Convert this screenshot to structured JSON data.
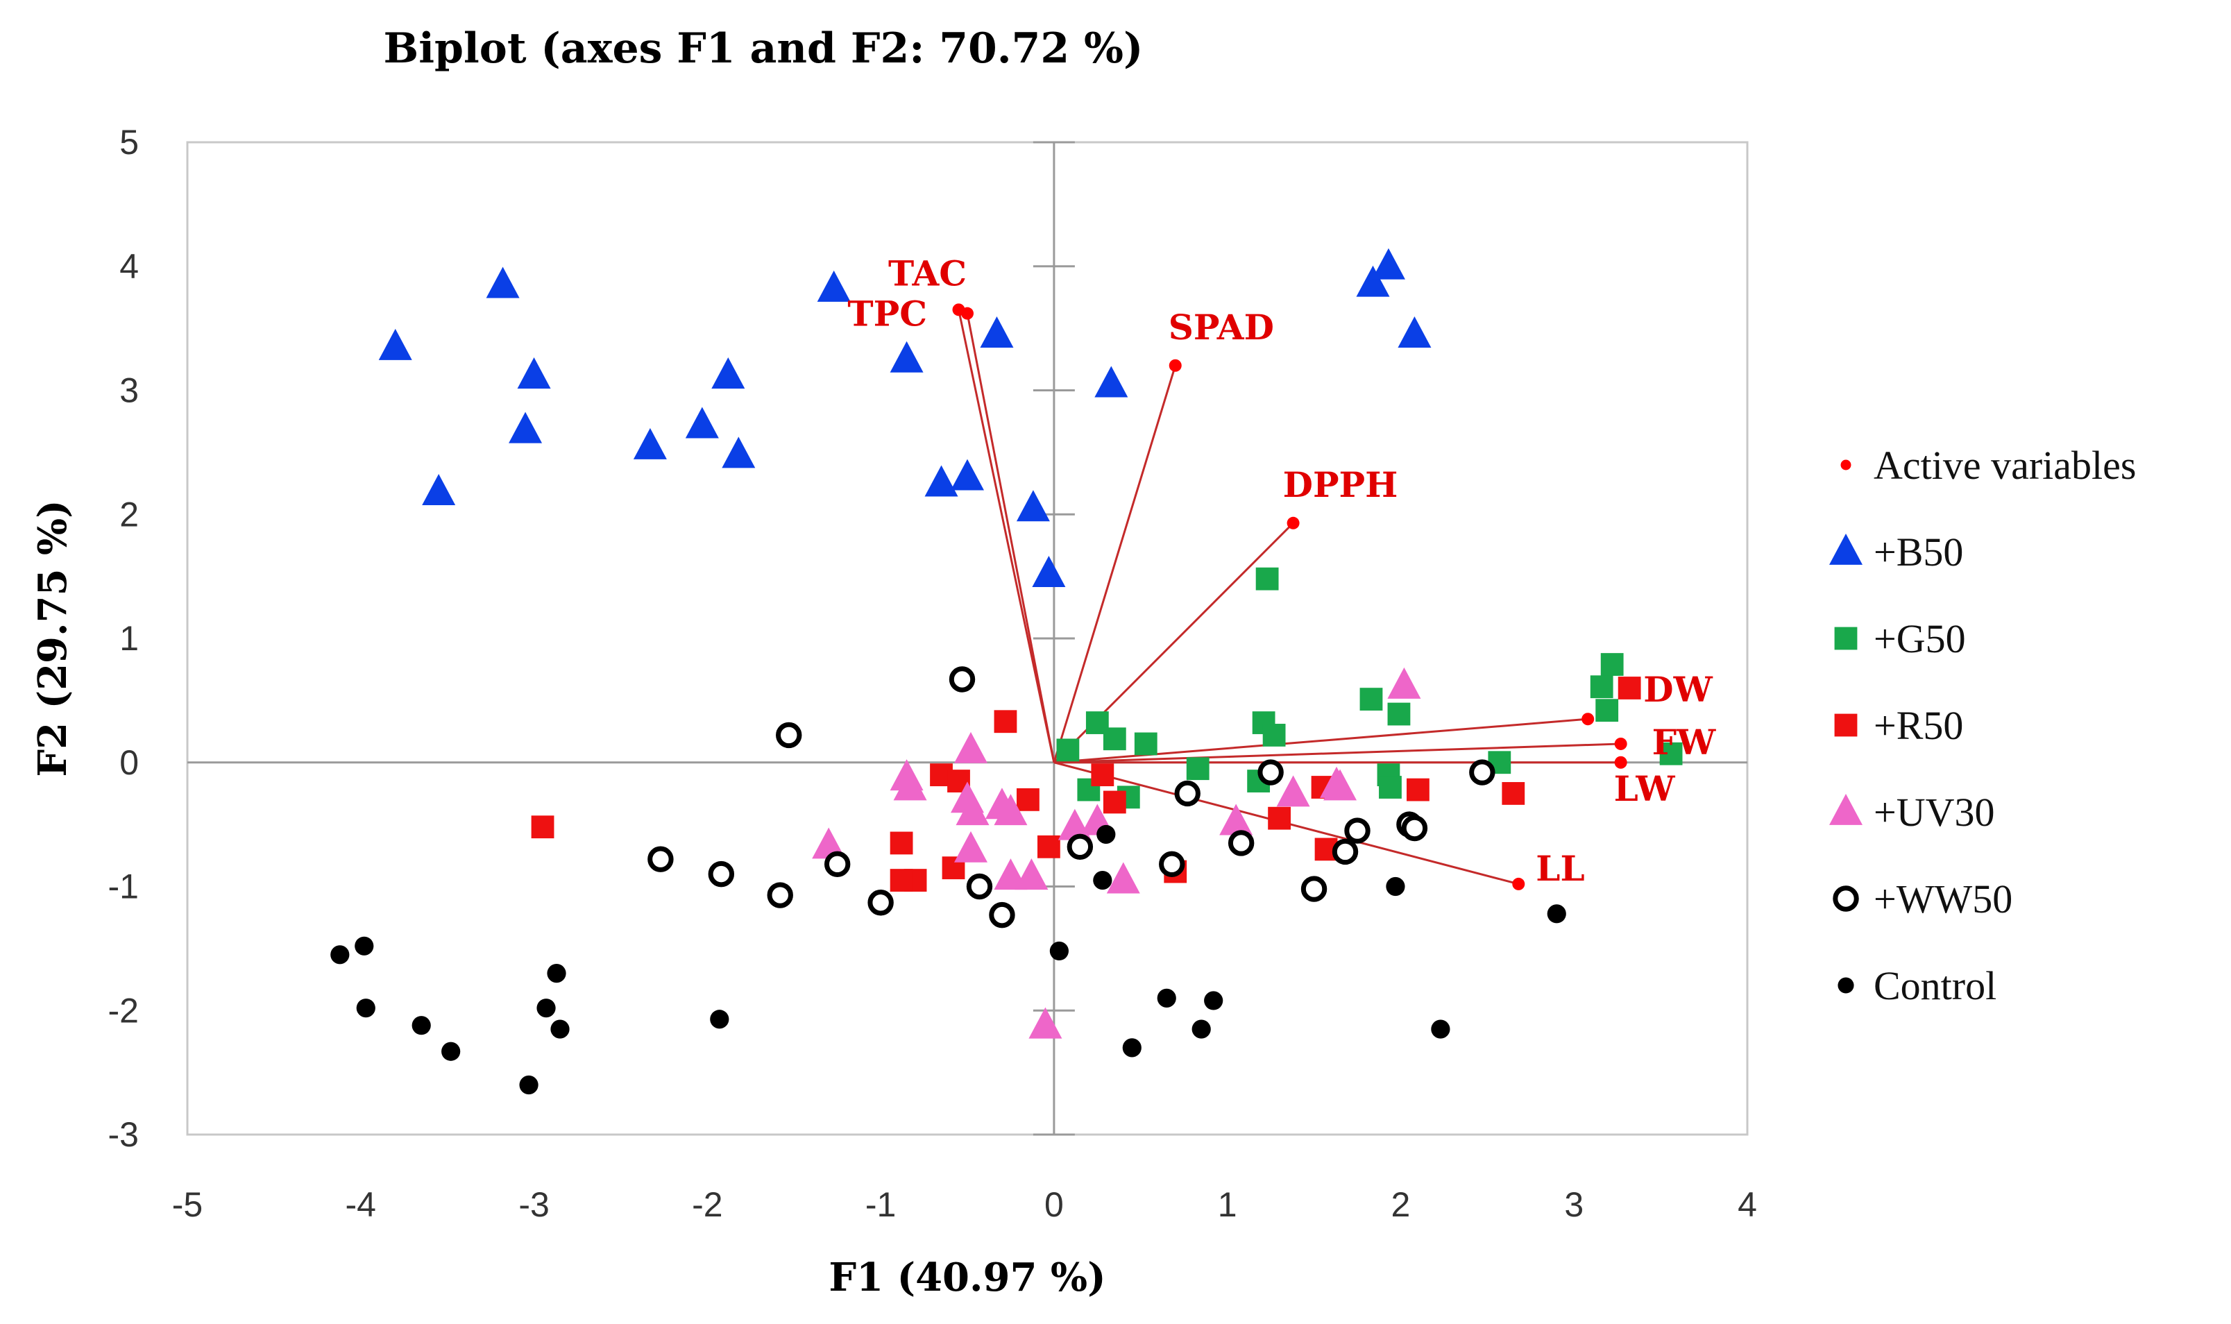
{
  "chart_data": {
    "type": "scatter",
    "title": "Biplot (axes F1 and F2: 70.72 %)",
    "xlabel": "F1 (40.97 %)",
    "ylabel": "F2 (29.75 %)",
    "xlim": [
      -5,
      4
    ],
    "ylim": [
      -3,
      5
    ],
    "xticks": [
      -5,
      -4,
      -3,
      -2,
      -1,
      0,
      1,
      2,
      3,
      4
    ],
    "yticks": [
      -3,
      -2,
      -1,
      0,
      1,
      2,
      3,
      4,
      5
    ],
    "grid": false,
    "legend_position": "right",
    "variables": [
      {
        "name": "TAC",
        "x": -0.55,
        "y": 3.65
      },
      {
        "name": "TPC",
        "x": -0.5,
        "y": 3.62
      },
      {
        "name": "SPAD",
        "x": 0.7,
        "y": 3.2
      },
      {
        "name": "DPPH",
        "x": 1.38,
        "y": 1.93
      },
      {
        "name": "DW",
        "x": 3.08,
        "y": 0.35
      },
      {
        "name": "FW",
        "x": 3.27,
        "y": 0.15
      },
      {
        "name": "LW",
        "x": 3.27,
        "y": 0.0
      },
      {
        "name": "LL",
        "x": 2.68,
        "y": -0.98
      }
    ],
    "series": [
      {
        "name": "Active variables",
        "marker": "dot",
        "color": "#ff0000"
      },
      {
        "name": "+B50",
        "marker": "triangle",
        "color": "#0a3fe6",
        "points": [
          [
            -3.8,
            3.35
          ],
          [
            -3.55,
            2.18
          ],
          [
            -3.18,
            3.85
          ],
          [
            -3.05,
            2.68
          ],
          [
            -3.0,
            3.12
          ],
          [
            -2.33,
            2.55
          ],
          [
            -2.03,
            2.72
          ],
          [
            -1.88,
            3.12
          ],
          [
            -1.82,
            2.48
          ],
          [
            -1.27,
            3.82
          ],
          [
            -0.85,
            3.25
          ],
          [
            -0.65,
            2.25
          ],
          [
            -0.5,
            2.3
          ],
          [
            -0.33,
            3.45
          ],
          [
            -0.12,
            2.05
          ],
          [
            -0.03,
            1.52
          ],
          [
            0.33,
            3.05
          ],
          [
            1.84,
            3.86
          ],
          [
            1.93,
            4.0
          ],
          [
            2.08,
            3.45
          ]
        ]
      },
      {
        "name": "+G50",
        "marker": "square",
        "color": "#19a84b",
        "points": [
          [
            1.23,
            1.48
          ],
          [
            3.22,
            0.79
          ],
          [
            3.16,
            0.61
          ],
          [
            3.19,
            0.42
          ],
          [
            3.56,
            0.07
          ],
          [
            1.83,
            0.51
          ],
          [
            1.99,
            0.39
          ],
          [
            1.21,
            0.32
          ],
          [
            1.27,
            0.22
          ],
          [
            0.25,
            0.32
          ],
          [
            0.35,
            0.19
          ],
          [
            0.53,
            0.15
          ],
          [
            0.08,
            0.1
          ],
          [
            2.57,
            0.0
          ],
          [
            0.83,
            -0.05
          ],
          [
            1.18,
            -0.15
          ],
          [
            1.93,
            -0.1
          ],
          [
            1.94,
            -0.2
          ],
          [
            0.2,
            -0.22
          ],
          [
            0.43,
            -0.28
          ]
        ]
      },
      {
        "name": "+R50",
        "marker": "square",
        "color": "#ee1111",
        "points": [
          [
            -2.95,
            -0.52
          ],
          [
            -0.28,
            0.33
          ],
          [
            -0.65,
            -0.1
          ],
          [
            -0.55,
            -0.15
          ],
          [
            -0.15,
            -0.3
          ],
          [
            0.28,
            -0.1
          ],
          [
            0.35,
            -0.32
          ],
          [
            -0.88,
            -0.65
          ],
          [
            -0.8,
            -0.95
          ],
          [
            -0.88,
            -0.95
          ],
          [
            -0.58,
            -0.85
          ],
          [
            -0.03,
            -0.68
          ],
          [
            0.7,
            -0.88
          ],
          [
            1.3,
            -0.45
          ],
          [
            1.55,
            -0.2
          ],
          [
            1.57,
            -0.7
          ],
          [
            2.1,
            -0.22
          ],
          [
            2.65,
            -0.25
          ],
          [
            3.32,
            0.6
          ]
        ]
      },
      {
        "name": "+UV30",
        "marker": "triangle",
        "color": "#ee66c9",
        "points": [
          [
            -1.3,
            -0.67
          ],
          [
            -0.85,
            -0.12
          ],
          [
            -0.83,
            -0.2
          ],
          [
            -0.48,
            0.1
          ],
          [
            -0.5,
            -0.3
          ],
          [
            -0.47,
            -0.4
          ],
          [
            -0.48,
            -0.7
          ],
          [
            -0.3,
            -0.35
          ],
          [
            -0.25,
            -0.4
          ],
          [
            -0.25,
            -0.92
          ],
          [
            -0.13,
            -0.92
          ],
          [
            -0.05,
            -2.12
          ],
          [
            0.12,
            -0.52
          ],
          [
            0.25,
            -0.48
          ],
          [
            0.4,
            -0.95
          ],
          [
            1.05,
            -0.48
          ],
          [
            1.38,
            -0.25
          ],
          [
            1.63,
            -0.18
          ],
          [
            1.65,
            -0.2
          ],
          [
            2.02,
            0.62
          ]
        ]
      },
      {
        "name": "+WW50",
        "marker": "ring",
        "color": "#000000",
        "points": [
          [
            -2.27,
            -0.78
          ],
          [
            -1.92,
            -0.9
          ],
          [
            -1.58,
            -1.07
          ],
          [
            -1.53,
            0.22
          ],
          [
            -1.25,
            -0.82
          ],
          [
            -1.0,
            -1.13
          ],
          [
            -0.53,
            0.67
          ],
          [
            -0.43,
            -1.0
          ],
          [
            -0.3,
            -1.23
          ],
          [
            0.15,
            -0.68
          ],
          [
            0.68,
            -0.82
          ],
          [
            0.77,
            -0.25
          ],
          [
            1.08,
            -0.65
          ],
          [
            1.25,
            -0.08
          ],
          [
            1.5,
            -1.02
          ],
          [
            1.68,
            -0.72
          ],
          [
            1.75,
            -0.55
          ],
          [
            2.05,
            -0.5
          ],
          [
            2.08,
            -0.53
          ],
          [
            2.47,
            -0.08
          ]
        ]
      },
      {
        "name": "Control",
        "marker": "dot",
        "color": "#000000",
        "points": [
          [
            -4.12,
            -1.55
          ],
          [
            -3.98,
            -1.48
          ],
          [
            -3.97,
            -1.98
          ],
          [
            -3.65,
            -2.12
          ],
          [
            -3.48,
            -2.33
          ],
          [
            -3.03,
            -2.6
          ],
          [
            -2.93,
            -1.98
          ],
          [
            -2.87,
            -1.7
          ],
          [
            -2.85,
            -2.15
          ],
          [
            -1.93,
            -2.07
          ],
          [
            0.03,
            -1.52
          ],
          [
            0.3,
            -0.58
          ],
          [
            0.28,
            -0.95
          ],
          [
            0.45,
            -2.3
          ],
          [
            0.65,
            -1.9
          ],
          [
            0.85,
            -2.15
          ],
          [
            0.92,
            -1.92
          ],
          [
            1.97,
            -1.0
          ],
          [
            2.23,
            -2.15
          ],
          [
            2.9,
            -1.22
          ]
        ]
      }
    ]
  }
}
